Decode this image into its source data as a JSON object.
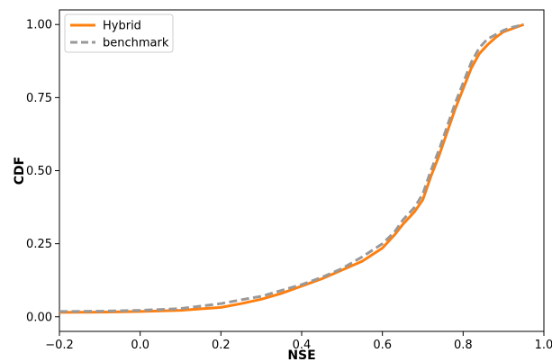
{
  "chart_data": {
    "type": "line",
    "title": "",
    "xlabel": "NSE",
    "ylabel": "CDF",
    "xlim": [
      -0.2,
      1.0
    ],
    "ylim": [
      -0.05,
      1.05
    ],
    "xticks": [
      -0.2,
      0.0,
      0.2,
      0.4,
      0.6,
      0.8,
      1.0
    ],
    "xtick_labels": [
      "−0.2",
      "0.0",
      "0.2",
      "0.4",
      "0.6",
      "0.8",
      "1.0"
    ],
    "yticks": [
      0.0,
      0.25,
      0.5,
      0.75,
      1.0
    ],
    "ytick_labels": [
      "0.00",
      "0.25",
      "0.50",
      "0.75",
      "1.00"
    ],
    "grid": false,
    "legend_position": "top-left",
    "series": [
      {
        "name": "Hybrid",
        "color": "#ff7f0e",
        "style": "solid",
        "x": [
          -0.2,
          -0.1,
          0.0,
          0.1,
          0.2,
          0.25,
          0.3,
          0.35,
          0.4,
          0.45,
          0.5,
          0.55,
          0.6,
          0.63,
          0.65,
          0.68,
          0.7,
          0.72,
          0.74,
          0.76,
          0.78,
          0.8,
          0.82,
          0.84,
          0.86,
          0.88,
          0.9,
          0.92,
          0.95
        ],
        "y": [
          0.015,
          0.016,
          0.018,
          0.022,
          0.032,
          0.045,
          0.06,
          0.08,
          0.105,
          0.13,
          0.16,
          0.19,
          0.235,
          0.28,
          0.315,
          0.36,
          0.4,
          0.48,
          0.55,
          0.63,
          0.71,
          0.78,
          0.85,
          0.9,
          0.93,
          0.955,
          0.975,
          0.985,
          1.0
        ]
      },
      {
        "name": "benchmark",
        "color": "#999999",
        "style": "dashed",
        "x": [
          -0.2,
          -0.1,
          0.0,
          0.1,
          0.2,
          0.25,
          0.3,
          0.35,
          0.4,
          0.45,
          0.5,
          0.55,
          0.6,
          0.63,
          0.65,
          0.68,
          0.7,
          0.72,
          0.74,
          0.76,
          0.78,
          0.8,
          0.82,
          0.84,
          0.86,
          0.88,
          0.9,
          0.92,
          0.95
        ],
        "y": [
          0.018,
          0.019,
          0.022,
          0.028,
          0.045,
          0.058,
          0.07,
          0.09,
          0.11,
          0.135,
          0.165,
          0.205,
          0.25,
          0.29,
          0.33,
          0.375,
          0.42,
          0.5,
          0.57,
          0.65,
          0.73,
          0.8,
          0.87,
          0.92,
          0.95,
          0.965,
          0.98,
          0.99,
          1.0
        ]
      }
    ]
  }
}
